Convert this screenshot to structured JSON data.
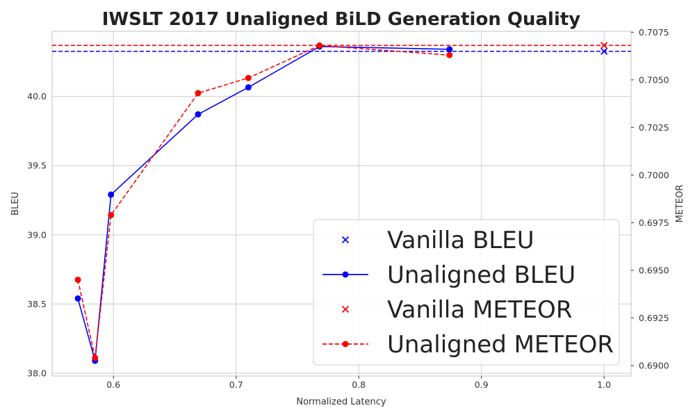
{
  "chart_data": {
    "type": "line",
    "title": "IWSLT 2017 Unaligned BiLD Generation Quality",
    "xlabel": "Normalized Latency",
    "ylabel": "BLEU",
    "y2label": "METEOR",
    "xlim": [
      0.55,
      1.022
    ],
    "ylim": [
      37.98,
      40.47
    ],
    "y2lim": [
      0.68945,
      0.70755
    ],
    "x_ticks": [
      "0.6",
      "0.7",
      "0.8",
      "0.9",
      "1.0"
    ],
    "y_ticks": [
      "38.0",
      "38.5",
      "39.0",
      "39.5",
      "40.0"
    ],
    "y2_ticks": [
      "0.6900",
      "0.6925",
      "0.6950",
      "0.6975",
      "0.7000",
      "0.7025",
      "0.7050",
      "0.7075"
    ],
    "grid": true,
    "legend_position": "bottom-right",
    "series": [
      {
        "name": "Vanilla BLEU",
        "axis": "left",
        "color": "#0000ff",
        "marker": "x",
        "line": "none",
        "hline": 40.325,
        "x": [
          1.0
        ],
        "y": [
          40.325
        ]
      },
      {
        "name": "Unaligned BLEU",
        "axis": "left",
        "color": "#0000ff",
        "marker": "o",
        "line": "solid",
        "x": [
          0.571,
          0.585,
          0.598,
          0.669,
          0.71,
          0.768,
          0.874
        ],
        "y": [
          38.54,
          38.09,
          39.29,
          39.87,
          40.065,
          40.36,
          40.34
        ]
      },
      {
        "name": "Vanilla METEOR",
        "axis": "right",
        "color": "#ff0000",
        "marker": "x",
        "line": "none",
        "hline": 0.70681,
        "x": [
          1.0
        ],
        "y": [
          0.70681
        ]
      },
      {
        "name": "Unaligned METEOR",
        "axis": "right",
        "color": "#ff0000",
        "marker": "o",
        "line": "dashed",
        "x": [
          0.571,
          0.585,
          0.598,
          0.669,
          0.71,
          0.768,
          0.874
        ],
        "y": [
          0.6945,
          0.6904,
          0.6979,
          0.7043,
          0.7051,
          0.7068,
          0.7063
        ]
      }
    ]
  }
}
